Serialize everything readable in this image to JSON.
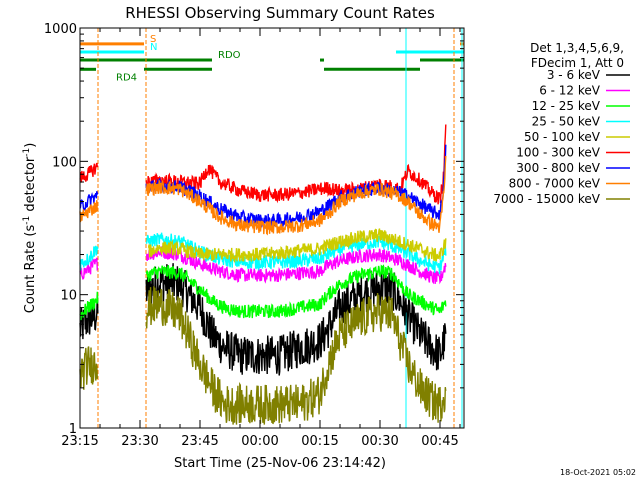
{
  "chart_data": {
    "type": "line",
    "title": "RHESSI Observing Summary Count Rates",
    "xlabel": "Start Time (25-Nov-06 23:14:42)",
    "ylabel": "Count Rate (s",
    "ylabel_sup1": "-1",
    "ylabel_mid": " detector",
    "ylabel_sup2": "-1",
    "ylabel_end": ")",
    "y_scale": "log",
    "ylim": [
      1,
      1000
    ],
    "xlim_minutes": [
      0,
      96
    ],
    "y_ticks": [
      {
        "value": 1,
        "label": "1"
      },
      {
        "value": 10,
        "label": "10"
      },
      {
        "value": 100,
        "label": "100"
      },
      {
        "value": 1000,
        "label": "1000"
      }
    ],
    "x_ticks": [
      {
        "minute": 0,
        "label": "23:15"
      },
      {
        "minute": 15,
        "label": "23:30"
      },
      {
        "minute": 30,
        "label": "23:45"
      },
      {
        "minute": 45,
        "label": "00:00"
      },
      {
        "minute": 60,
        "label": "00:15"
      },
      {
        "minute": 75,
        "label": "00:30"
      },
      {
        "minute": 90,
        "label": "00:45"
      }
    ],
    "legend_header": [
      "Det 1,3,4,5,6,9,",
      "FDecim 1, Att 0"
    ],
    "legend_position": "right",
    "timestamp": "18-Oct-2021 05:02",
    "gaps": [
      [
        4.5,
        16.5
      ],
      [
        91.5,
        96
      ]
    ],
    "flags": [
      {
        "label": "S",
        "color": "#ff7f00",
        "y": 760,
        "segments": [
          [
            0,
            16
          ],
          [
            95,
            96
          ]
        ]
      },
      {
        "label": "N",
        "color": "#00ffff",
        "y": 660,
        "segments": [
          [
            0,
            16
          ],
          [
            79,
            96
          ]
        ]
      },
      {
        "label": "RDO",
        "color": "#008000",
        "y": 575,
        "segments": [
          [
            0,
            33
          ],
          [
            60,
            61
          ],
          [
            85,
            96
          ]
        ]
      },
      {
        "label": "RD4",
        "color": "#008000",
        "y": 490,
        "segments": [
          [
            0,
            4
          ],
          [
            16,
            33
          ],
          [
            61,
            85
          ]
        ]
      }
    ],
    "vlines": [
      {
        "minute": 0,
        "color": "#00ffff"
      },
      {
        "minute": 4.5,
        "color": "#ff7f00"
      },
      {
        "minute": 16.5,
        "color": "#ff7f00"
      },
      {
        "minute": 81.5,
        "color": "#00ffff"
      },
      {
        "minute": 93.5,
        "color": "#ff7f00"
      },
      {
        "minute": 95.5,
        "color": "#00ffff"
      }
    ],
    "series": [
      {
        "name": "3 - 6 keV",
        "color": "#000000",
        "points": [
          [
            0,
            5.5
          ],
          [
            2,
            6.5
          ],
          [
            4,
            7
          ],
          [
            4.5,
            7.5
          ],
          [
            17,
            11
          ],
          [
            20,
            12.5
          ],
          [
            25,
            12
          ],
          [
            30,
            8
          ],
          [
            33,
            5
          ],
          [
            36,
            4
          ],
          [
            40,
            3.5
          ],
          [
            45,
            3.5
          ],
          [
            50,
            3.5
          ],
          [
            55,
            4
          ],
          [
            60,
            4.5
          ],
          [
            62,
            5.5
          ],
          [
            65,
            8
          ],
          [
            70,
            10
          ],
          [
            75,
            11.5
          ],
          [
            78,
            11
          ],
          [
            80,
            9
          ],
          [
            82,
            7
          ],
          [
            85,
            5
          ],
          [
            88,
            4
          ],
          [
            90,
            3.5
          ],
          [
            91.5,
            5
          ]
        ]
      },
      {
        "name": "6 - 12 keV",
        "color": "#ff00ff",
        "points": [
          [
            0,
            14
          ],
          [
            2,
            15.5
          ],
          [
            4,
            17
          ],
          [
            4.5,
            17.5
          ],
          [
            17,
            20
          ],
          [
            20,
            21
          ],
          [
            25,
            20
          ],
          [
            30,
            17
          ],
          [
            35,
            15
          ],
          [
            40,
            14
          ],
          [
            45,
            14
          ],
          [
            50,
            14
          ],
          [
            55,
            14.5
          ],
          [
            60,
            15
          ],
          [
            62,
            16.5
          ],
          [
            65,
            18
          ],
          [
            70,
            19.5
          ],
          [
            75,
            20
          ],
          [
            80,
            18
          ],
          [
            85,
            15
          ],
          [
            88,
            13.5
          ],
          [
            90,
            13
          ],
          [
            91.5,
            17
          ]
        ]
      },
      {
        "name": "12 - 25 keV",
        "color": "#00ff00",
        "points": [
          [
            0,
            7
          ],
          [
            2,
            8
          ],
          [
            4,
            9
          ],
          [
            4.5,
            9.5
          ],
          [
            17,
            14
          ],
          [
            20,
            15
          ],
          [
            25,
            14.5
          ],
          [
            30,
            11
          ],
          [
            33,
            9
          ],
          [
            36,
            8
          ],
          [
            40,
            7.5
          ],
          [
            45,
            7.5
          ],
          [
            50,
            7.5
          ],
          [
            55,
            8
          ],
          [
            60,
            8.5
          ],
          [
            62,
            10
          ],
          [
            65,
            12
          ],
          [
            70,
            14
          ],
          [
            75,
            15
          ],
          [
            78,
            14.5
          ],
          [
            80,
            12
          ],
          [
            82,
            10
          ],
          [
            85,
            9
          ],
          [
            88,
            8
          ],
          [
            90,
            7.5
          ],
          [
            91.5,
            9
          ]
        ]
      },
      {
        "name": "25 - 50 keV",
        "color": "#00ffff",
        "points": [
          [
            0,
            17
          ],
          [
            2,
            18.5
          ],
          [
            4,
            22
          ],
          [
            4.5,
            22.5
          ],
          [
            17,
            25
          ],
          [
            20,
            26
          ],
          [
            25,
            25
          ],
          [
            30,
            21
          ],
          [
            35,
            18.5
          ],
          [
            40,
            17.5
          ],
          [
            45,
            17.5
          ],
          [
            50,
            17.5
          ],
          [
            55,
            18
          ],
          [
            60,
            18.5
          ],
          [
            62,
            20
          ],
          [
            65,
            22
          ],
          [
            70,
            24
          ],
          [
            75,
            25
          ],
          [
            80,
            22
          ],
          [
            85,
            18
          ],
          [
            88,
            16.5
          ],
          [
            90,
            16
          ],
          [
            91.5,
            22
          ]
        ]
      },
      {
        "name": "50 - 100 keV",
        "color": "#cccc00",
        "points": [
          [
            17,
            21
          ],
          [
            20,
            22.5
          ],
          [
            25,
            22
          ],
          [
            30,
            20
          ],
          [
            35,
            20
          ],
          [
            40,
            20
          ],
          [
            45,
            20
          ],
          [
            50,
            20.5
          ],
          [
            55,
            21.5
          ],
          [
            60,
            22
          ],
          [
            62,
            23.5
          ],
          [
            65,
            25
          ],
          [
            70,
            27
          ],
          [
            75,
            28
          ],
          [
            80,
            25
          ],
          [
            85,
            22
          ],
          [
            88,
            20
          ],
          [
            90,
            19.5
          ],
          [
            91.5,
            25
          ]
        ]
      },
      {
        "name": "100 - 300 keV",
        "color": "#ff0000",
        "points": [
          [
            0,
            75
          ],
          [
            2,
            80
          ],
          [
            4,
            90
          ],
          [
            4.5,
            92
          ],
          [
            17,
            70
          ],
          [
            20,
            72
          ],
          [
            25,
            70
          ],
          [
            30,
            68
          ],
          [
            32,
            90
          ],
          [
            35,
            70
          ],
          [
            40,
            60
          ],
          [
            45,
            56
          ],
          [
            50,
            56
          ],
          [
            55,
            58
          ],
          [
            60,
            62
          ],
          [
            62,
            63
          ],
          [
            65,
            60
          ],
          [
            70,
            62
          ],
          [
            75,
            68
          ],
          [
            80,
            62
          ],
          [
            82,
            85
          ],
          [
            85,
            72
          ],
          [
            88,
            58
          ],
          [
            90,
            52
          ],
          [
            91,
            80
          ],
          [
            91.5,
            230
          ]
        ]
      },
      {
        "name": "300 - 800 keV",
        "color": "#0000ff",
        "points": [
          [
            0,
            45
          ],
          [
            2,
            50
          ],
          [
            4,
            55
          ],
          [
            4.5,
            56
          ],
          [
            17,
            64
          ],
          [
            20,
            66
          ],
          [
            25,
            64
          ],
          [
            30,
            55
          ],
          [
            35,
            44
          ],
          [
            40,
            38
          ],
          [
            45,
            36
          ],
          [
            50,
            36
          ],
          [
            55,
            38
          ],
          [
            60,
            42
          ],
          [
            62,
            46
          ],
          [
            65,
            54
          ],
          [
            70,
            60
          ],
          [
            75,
            63
          ],
          [
            80,
            58
          ],
          [
            82,
            55
          ],
          [
            85,
            48
          ],
          [
            88,
            42
          ],
          [
            90,
            40
          ],
          [
            91,
            70
          ],
          [
            91.5,
            140
          ]
        ]
      },
      {
        "name": "800 - 7000 keV",
        "color": "#ff7f00",
        "points": [
          [
            0,
            38
          ],
          [
            2,
            42
          ],
          [
            4,
            46
          ],
          [
            4.5,
            47
          ],
          [
            17,
            62
          ],
          [
            20,
            64
          ],
          [
            25,
            62
          ],
          [
            30,
            50
          ],
          [
            35,
            38
          ],
          [
            40,
            33
          ],
          [
            45,
            32
          ],
          [
            50,
            32
          ],
          [
            55,
            33
          ],
          [
            60,
            36
          ],
          [
            62,
            40
          ],
          [
            65,
            50
          ],
          [
            70,
            58
          ],
          [
            75,
            62
          ],
          [
            80,
            55
          ],
          [
            82,
            50
          ],
          [
            85,
            40
          ],
          [
            88,
            34
          ],
          [
            90,
            32
          ],
          [
            91,
            60
          ],
          [
            91.5,
            110
          ]
        ]
      },
      {
        "name": "7000 - 15000 keV",
        "color": "#808000",
        "points": [
          [
            0,
            2.5
          ],
          [
            2,
            3
          ],
          [
            4,
            3
          ],
          [
            4.5,
            3
          ],
          [
            17,
            8
          ],
          [
            20,
            8.5
          ],
          [
            25,
            7
          ],
          [
            30,
            3
          ],
          [
            33,
            2
          ],
          [
            36,
            1.5
          ],
          [
            40,
            1.5
          ],
          [
            45,
            1.5
          ],
          [
            50,
            1.5
          ],
          [
            55,
            1.5
          ],
          [
            60,
            1.8
          ],
          [
            62,
            3
          ],
          [
            65,
            5
          ],
          [
            70,
            6.5
          ],
          [
            75,
            7.5
          ],
          [
            78,
            7
          ],
          [
            80,
            4.5
          ],
          [
            82,
            3
          ],
          [
            85,
            2
          ],
          [
            88,
            1.6
          ],
          [
            90,
            1.5
          ],
          [
            91.5,
            2
          ]
        ]
      }
    ]
  }
}
